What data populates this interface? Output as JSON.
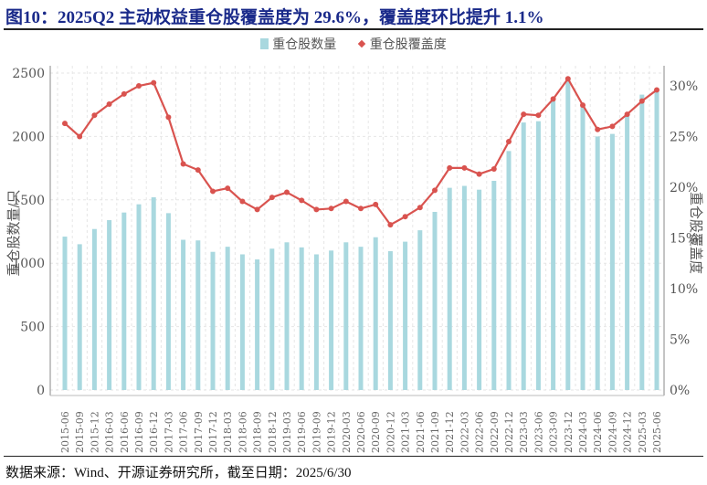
{
  "title": "图10：2025Q2 主动权益重仓股覆盖度为 29.6%，覆盖度环比提升 1.1%",
  "legend": {
    "bar_label": "重仓股数量",
    "line_label": "重仓股覆盖度"
  },
  "source": "数据来源：Wind、开源证券研究所，截至日期：2025/6/30",
  "colors": {
    "bar": "#a9d8df",
    "line": "#d9534f",
    "title": "#1a2a8a"
  },
  "chart_data": {
    "type": "bar+line",
    "title": "2025Q2 主动权益重仓股覆盖度为 29.6%，覆盖度环比提升 1.1%",
    "xlabel": "",
    "ylabel": "重仓股数量/只",
    "ylabel_right": "重仓股覆盖度",
    "ylim": [
      0,
      2500
    ],
    "ylim_right": [
      0,
      0.3
    ],
    "yticks": [
      "0",
      "500",
      "1000",
      "1500",
      "2000",
      "2500"
    ],
    "yticks_right": [
      "0%",
      "5%",
      "10%",
      "15%",
      "20%",
      "25%",
      "30%"
    ],
    "grid": true,
    "legend_position": "top",
    "categories": [
      "2015-06",
      "2015-09",
      "2015-12",
      "2016-03",
      "2016-06",
      "2016-09",
      "2016-12",
      "2017-03",
      "2017-06",
      "2017-09",
      "2017-12",
      "2018-03",
      "2018-06",
      "2018-09",
      "2018-12",
      "2019-03",
      "2019-06",
      "2019-09",
      "2019-12",
      "2020-03",
      "2020-06",
      "2020-09",
      "2020-12",
      "2021-03",
      "2021-06",
      "2021-09",
      "2021-12",
      "2022-03",
      "2022-06",
      "2022-09",
      "2022-12",
      "2023-03",
      "2023-06",
      "2023-09",
      "2023-12",
      "2024-03",
      "2024-06",
      "2024-09",
      "2024-12",
      "2025-03",
      "2025-06"
    ],
    "series": [
      {
        "name": "重仓股数量",
        "type": "bar",
        "axis": "left",
        "values": [
          1210,
          1150,
          1270,
          1340,
          1400,
          1465,
          1520,
          1395,
          1185,
          1180,
          1090,
          1130,
          1070,
          1030,
          1115,
          1165,
          1125,
          1070,
          1100,
          1165,
          1130,
          1205,
          1095,
          1170,
          1260,
          1405,
          1595,
          1610,
          1580,
          1650,
          1885,
          2110,
          2120,
          2280,
          2460,
          2240,
          2000,
          2020,
          2180,
          2330,
          2380
        ]
      },
      {
        "name": "重仓股覆盖度",
        "type": "line",
        "axis": "right",
        "values": [
          0.263,
          0.25,
          0.271,
          0.282,
          0.292,
          0.3,
          0.303,
          0.269,
          0.223,
          0.217,
          0.196,
          0.199,
          0.186,
          0.178,
          0.19,
          0.195,
          0.187,
          0.178,
          0.179,
          0.186,
          0.179,
          0.183,
          0.163,
          0.171,
          0.18,
          0.197,
          0.219,
          0.219,
          0.213,
          0.218,
          0.245,
          0.272,
          0.271,
          0.287,
          0.307,
          0.281,
          0.257,
          0.26,
          0.272,
          0.285,
          0.296
        ]
      }
    ]
  }
}
